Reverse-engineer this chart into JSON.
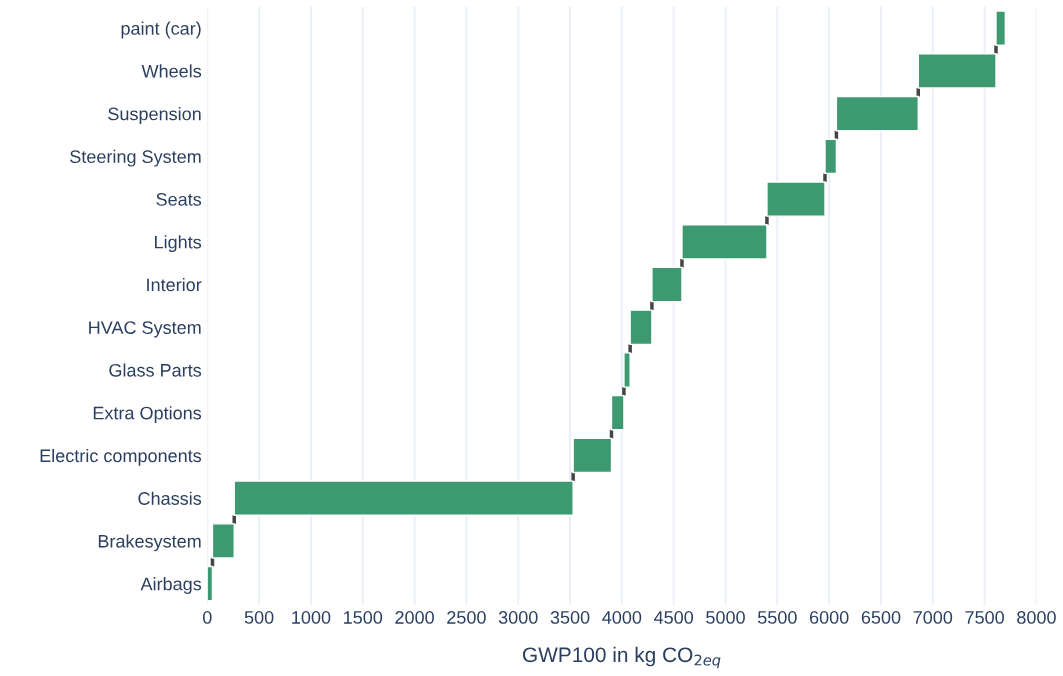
{
  "chart_data": {
    "type": "bar",
    "orientation": "horizontal",
    "categories": [
      "paint (car)",
      "Wheels",
      "Suspension",
      "Steering System",
      "Seats",
      "Lights",
      "Interior",
      "HVAC System",
      "Glass Parts",
      "Extra Options",
      "Electric components",
      "Chassis",
      "Brakesystem",
      "Airbags"
    ],
    "values": [
      90,
      750,
      790,
      110,
      560,
      820,
      290,
      210,
      60,
      120,
      370,
      3270,
      210,
      50
    ],
    "base": [
      7610,
      6860,
      6070,
      5960,
      5400,
      4580,
      4290,
      4080,
      4020,
      3900,
      3530,
      260,
      50,
      0
    ],
    "color": "#3d9970",
    "xlabel": "GWP100 in kg CO$_{2eq}$",
    "xlim": [
      0,
      8000
    ],
    "xticks": [
      0,
      500,
      1000,
      1500,
      2000,
      2500,
      3000,
      3500,
      4000,
      4500,
      5000,
      5500,
      6000,
      6500,
      7000,
      7500,
      8000
    ],
    "grid": "x"
  }
}
